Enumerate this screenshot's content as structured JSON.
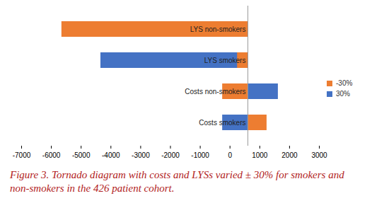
{
  "chart_data": {
    "type": "bar",
    "orientation": "horizontal",
    "caption": "Figure 3. Tornado diagram with costs and LYSs varied ± 30% for smokers and non-smokers in the 426 patient cohort.",
    "categories": [
      "LYS non-smokers",
      "LYS smokers",
      "Costs non-smokers",
      "Costs smokers"
    ],
    "base": 600,
    "series": [
      {
        "name": "30%",
        "color": "#4472c4",
        "values": [
          null,
          -4340,
          1620,
          -250
        ]
      },
      {
        "name": "-30%",
        "color": "#ed7d31",
        "values": [
          -5650,
          250,
          -250,
          1240
        ]
      }
    ],
    "xlim": [
      -7000,
      3000
    ],
    "xticks": [
      -7000,
      -6000,
      -5000,
      -4000,
      -3000,
      -2000,
      -1000,
      0,
      1000,
      2000,
      3000
    ],
    "grid": false,
    "legend": "right"
  }
}
